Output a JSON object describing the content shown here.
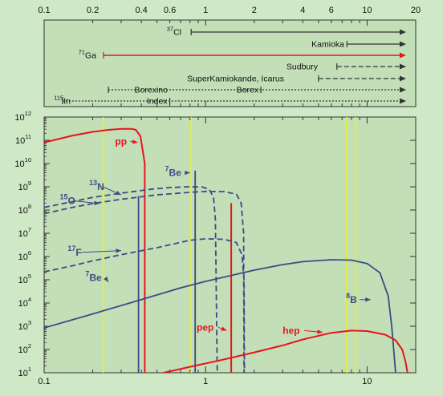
{
  "colors": {
    "background": "#cfe8c6",
    "panel": "#c2dfb8",
    "frame": "#333333",
    "blue": "#3d4a86",
    "red": "#e8141c",
    "yellow": "#f4f400"
  },
  "chart_data": [
    {
      "type": "threshold-bars",
      "x_scale": "log",
      "x_range": [
        0.1,
        20
      ],
      "x_tick_labels": [
        {
          "x": 0.1,
          "label": "0.1"
        },
        {
          "x": 0.2,
          "label": "0.2"
        },
        {
          "x": 0.4,
          "label": "0.4"
        },
        {
          "x": 0.6,
          "label": "0.6"
        },
        {
          "x": 1,
          "label": "1"
        },
        {
          "x": 2,
          "label": "2"
        },
        {
          "x": 4,
          "label": "4"
        },
        {
          "x": 6,
          "label": "6"
        },
        {
          "x": 10,
          "label": "10"
        },
        {
          "x": 20,
          "label": "20"
        }
      ],
      "detectors": [
        {
          "label_sup": "37",
          "label": "Cl",
          "threshold": 0.814,
          "style": "solid",
          "color": "dark"
        },
        {
          "label_sup": "",
          "label": "Kamioka",
          "threshold": 7.5,
          "style": "solid",
          "color": "dark"
        },
        {
          "label_sup": "71",
          "label": "Ga",
          "threshold": 0.233,
          "style": "solid",
          "color": "red"
        },
        {
          "label_sup": "",
          "label": "Sudbury",
          "threshold": 6.5,
          "style": "dashed",
          "color": "dark"
        },
        {
          "label_sup": "",
          "label": "SuperKamiokande, Icarus",
          "threshold": 5.0,
          "style": "dashed",
          "color": "dark"
        },
        {
          "label_sup": "",
          "label": "Borexino",
          "threshold": 0.25,
          "style": "dotted",
          "color": "dark",
          "second_label": "Borex",
          "second_threshold": 2.2
        },
        {
          "label_sup": "115",
          "label": "In",
          "threshold": 0.13,
          "style": "dotted",
          "color": "dark",
          "second_label": "Index",
          "second_threshold": 0.6
        }
      ]
    },
    {
      "type": "line",
      "x_scale": "log",
      "y_scale": "log",
      "xlim": [
        0.1,
        20
      ],
      "ylim": [
        10,
        1000000000000.0
      ],
      "x_tick_labels": [
        {
          "x": 0.1,
          "label": "0.1"
        },
        {
          "x": 1,
          "label": "1"
        },
        {
          "x": 10,
          "label": "10"
        }
      ],
      "y_tick_labels": [
        {
          "y": 10,
          "base": "10",
          "exp": "1"
        },
        {
          "y": 100,
          "base": "10",
          "exp": "2"
        },
        {
          "y": 1000,
          "base": "10",
          "exp": "3"
        },
        {
          "y": 10000,
          "base": "10",
          "exp": "4"
        },
        {
          "y": 100000,
          "base": "10",
          "exp": "5"
        },
        {
          "y": 1000000,
          "base": "10",
          "exp": "6"
        },
        {
          "y": 10000000,
          "base": "10",
          "exp": "7"
        },
        {
          "y": 100000000,
          "base": "10",
          "exp": "8"
        },
        {
          "y": 1000000000,
          "base": "10",
          "exp": "9"
        },
        {
          "y": 10000000000,
          "base": "10",
          "exp": "10"
        },
        {
          "y": 100000000000,
          "base": "10",
          "exp": "11"
        },
        {
          "y": 1000000000000,
          "base": "10",
          "exp": "12"
        }
      ],
      "thresholds_x": [
        0.233,
        0.814,
        7.5,
        8.5
      ],
      "series": [
        {
          "name": "pp",
          "color": "red",
          "style": "solid",
          "points": [
            [
              0.1,
              80000000000.0
            ],
            [
              0.15,
              160000000000.0
            ],
            [
              0.2,
              230000000000.0
            ],
            [
              0.25,
              280000000000.0
            ],
            [
              0.3,
              310000000000.0
            ],
            [
              0.35,
              310000000000.0
            ],
            [
              0.37,
              280000000000.0
            ],
            [
              0.395,
              150000000000.0
            ],
            [
              0.42,
              10000000000.0
            ],
            [
              0.42,
              10
            ]
          ]
        },
        {
          "name": "7Be",
          "color": "blue",
          "style": "solid",
          "points": [
            [
              0.862,
              10
            ],
            [
              0.862,
              5000000000.0
            ]
          ]
        },
        {
          "name": "7Be",
          "color": "blue",
          "style": "solid",
          "points": [
            [
              0.384,
              10
            ],
            [
              0.384,
              400000000.0
            ]
          ]
        },
        {
          "name": "pep",
          "color": "red",
          "style": "solid",
          "points": [
            [
              1.44,
              10
            ],
            [
              1.44,
              200000000.0
            ]
          ]
        },
        {
          "name": "13N",
          "color": "blue",
          "style": "dashed",
          "points": [
            [
              0.1,
              130000000.0
            ],
            [
              0.15,
              230000000.0
            ],
            [
              0.2,
              350000000.0
            ],
            [
              0.3,
              530000000.0
            ],
            [
              0.45,
              770000000.0
            ],
            [
              0.6,
              930000000.0
            ],
            [
              0.8,
              1000000000.0
            ],
            [
              0.95,
              980000000.0
            ],
            [
              1.05,
              800000000.0
            ],
            [
              1.12,
              350000000.0
            ],
            [
              1.15,
              40000000.0
            ],
            [
              1.18,
              10
            ]
          ]
        },
        {
          "name": "15O",
          "color": "blue",
          "style": "dashed",
          "points": [
            [
              0.1,
              70000000.0
            ],
            [
              0.15,
              130000000.0
            ],
            [
              0.2,
              190000000.0
            ],
            [
              0.3,
              290000000.0
            ],
            [
              0.5,
              450000000.0
            ],
            [
              0.8,
              580000000.0
            ],
            [
              1.0,
              630000000.0
            ],
            [
              1.3,
              620000000.0
            ],
            [
              1.55,
              480000000.0
            ],
            [
              1.66,
              200000000.0
            ],
            [
              1.72,
              10000000.0
            ],
            [
              1.73,
              10
            ]
          ]
        },
        {
          "name": "17F",
          "color": "blue",
          "style": "dashed",
          "points": [
            [
              0.1,
              220000.0
            ],
            [
              0.15,
              400000.0
            ],
            [
              0.2,
              650000.0
            ],
            [
              0.3,
              1200000.0
            ],
            [
              0.5,
              2400000.0
            ],
            [
              0.8,
              5000000.0
            ],
            [
              1.0,
              5800000.0
            ],
            [
              1.3,
              5500000.0
            ],
            [
              1.55,
              4000000.0
            ],
            [
              1.68,
              1200000.0
            ],
            [
              1.73,
              100000.0
            ],
            [
              1.74,
              10
            ]
          ]
        },
        {
          "name": "8B",
          "color": "blue",
          "style": "solid",
          "points": [
            [
              0.1,
              850
            ],
            [
              0.2,
              3400.0
            ],
            [
              0.4,
              14000.0
            ],
            [
              0.7,
              45000.0
            ],
            [
              1.0,
              85000.0
            ],
            [
              2.0,
              260000.0
            ],
            [
              3.0,
              450000.0
            ],
            [
              4.0,
              600000.0
            ],
            [
              6.0,
              730000.0
            ],
            [
              8.0,
              700000.0
            ],
            [
              10.0,
              500000.0
            ],
            [
              12.0,
              200000.0
            ],
            [
              13.5,
              20000.0
            ],
            [
              14.2,
              1000.0
            ],
            [
              14.7,
              60
            ],
            [
              15.0,
              10
            ]
          ]
        },
        {
          "name": "hep",
          "color": "red",
          "style": "solid",
          "points": [
            [
              0.55,
              10
            ],
            [
              0.8,
              18
            ],
            [
              1.2,
              33
            ],
            [
              2.0,
              75
            ],
            [
              3.0,
              150
            ],
            [
              4.0,
              270
            ],
            [
              6.0,
              520
            ],
            [
              8.0,
              650
            ],
            [
              10.0,
              620
            ],
            [
              13.0,
              430
            ],
            [
              15.0,
              250
            ],
            [
              16.5,
              100
            ],
            [
              17.3,
              30
            ],
            [
              17.8,
              10
            ]
          ]
        }
      ],
      "annotations": [
        {
          "text": "pp",
          "sup": "",
          "color": "red",
          "x": 0.275,
          "y": 90000000000.0
        },
        {
          "text": "Be",
          "sup": "7",
          "color": "blue",
          "x": 0.56,
          "y": 4000000000.0
        },
        {
          "text": "N",
          "sup": "13",
          "color": "blue",
          "x": 0.19,
          "y": 1000000000.0
        },
        {
          "text": "O",
          "sup": "15",
          "color": "blue",
          "x": 0.125,
          "y": 250000000.0
        },
        {
          "text": "F",
          "sup": "17",
          "color": "blue",
          "x": 0.14,
          "y": 1500000.0
        },
        {
          "text": "Be",
          "sup": "7",
          "color": "blue",
          "x": 0.18,
          "y": 120000.0
        },
        {
          "text": "pep",
          "sup": "",
          "color": "red",
          "x": 0.88,
          "y": 900
        },
        {
          "text": "hep",
          "sup": "",
          "color": "red",
          "x": 3.0,
          "y": 650
        },
        {
          "text": "B",
          "sup": "8",
          "color": "blue",
          "x": 7.4,
          "y": 14000.0
        }
      ]
    }
  ]
}
